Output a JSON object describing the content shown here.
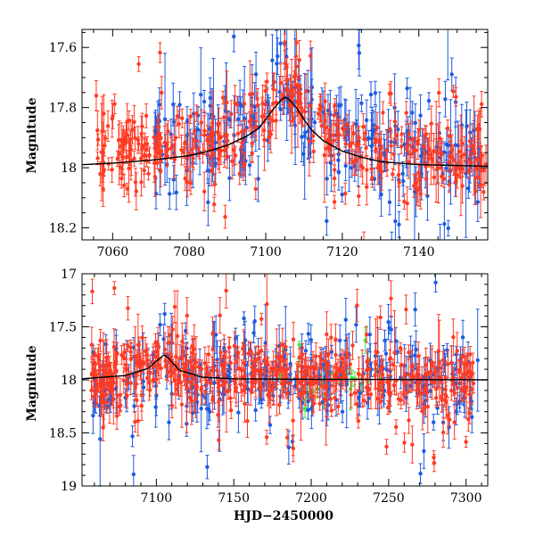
{
  "chart_data": [
    {
      "type": "scatter",
      "panel": "top",
      "title": "",
      "xlabel": "",
      "ylabel": "Magnitude",
      "xlim": [
        7052,
        7158
      ],
      "ylim": [
        18.24,
        17.54
      ],
      "y_inverted": true,
      "xticks": [
        7060,
        7080,
        7100,
        7120,
        7140
      ],
      "yticks": [
        17.6,
        17.8,
        18,
        18.2
      ],
      "xtick_labels": [
        "7060",
        "7080",
        "7100",
        "7120",
        "7140"
      ],
      "ytick_labels": [
        "17.6",
        "17.8",
        "18",
        "18.2"
      ],
      "grid": false,
      "legend": "none",
      "colors": {
        "series_blue": "#1e5be0",
        "series_red": "#ff3b24",
        "series_green": "#3fe63f",
        "model": "#000000",
        "axis": "#000000"
      },
      "model_curve": {
        "name": "model",
        "x": [
          7052,
          7060,
          7070,
          7080,
          7085,
          7090,
          7095,
          7098,
          7100,
          7102,
          7104,
          7105,
          7106,
          7108,
          7110,
          7112,
          7115,
          7120,
          7125,
          7130,
          7140,
          7158
        ],
        "y": [
          17.99,
          17.985,
          17.975,
          17.96,
          17.945,
          17.925,
          17.895,
          17.87,
          17.84,
          17.805,
          17.775,
          17.765,
          17.772,
          17.8,
          17.84,
          17.875,
          17.91,
          17.945,
          17.965,
          17.98,
          17.99,
          17.995
        ]
      },
      "series": [
        {
          "name": "blue",
          "x_range": [
            7070,
            7156
          ],
          "y_center": 17.88,
          "y_spread": 0.08,
          "n": 260
        },
        {
          "name": "red",
          "x_range": [
            7055,
            7158
          ],
          "y_center": 17.92,
          "y_spread": 0.06,
          "n": 420
        }
      ]
    },
    {
      "type": "scatter",
      "panel": "bottom",
      "title": "",
      "xlabel": "HJD−2450000",
      "ylabel": "Magnitude",
      "xlim": [
        7052,
        7314
      ],
      "ylim": [
        19.0,
        17.0
      ],
      "y_inverted": true,
      "xticks": [
        7100,
        7150,
        7200,
        7250,
        7300
      ],
      "yticks": [
        17,
        17.5,
        18,
        18.5,
        19
      ],
      "xtick_labels": [
        "7100",
        "7150",
        "7200",
        "7250",
        "7300"
      ],
      "ytick_labels": [
        "17",
        "17.5",
        "18",
        "18.5",
        "19"
      ],
      "grid": false,
      "legend": "none",
      "model_curve": {
        "name": "model",
        "x": [
          7052,
          7080,
          7095,
          7102,
          7105,
          7108,
          7115,
          7130,
          7150,
          7200,
          7250,
          7314
        ],
        "y": [
          17.99,
          17.96,
          17.89,
          17.8,
          17.765,
          17.8,
          17.91,
          17.975,
          17.99,
          17.995,
          17.997,
          18.0
        ]
      },
      "series": [
        {
          "name": "blue",
          "x_range": [
            7058,
            7308
          ],
          "y_center": 17.98,
          "y_spread": 0.18,
          "n": 320
        },
        {
          "name": "red",
          "x_range": [
            7058,
            7305
          ],
          "y_center": 17.99,
          "y_spread": 0.16,
          "n": 520
        },
        {
          "name": "green",
          "x_range": [
            7180,
            7245
          ],
          "y_center": 18.0,
          "y_spread": 0.08,
          "n": 30
        }
      ]
    }
  ]
}
